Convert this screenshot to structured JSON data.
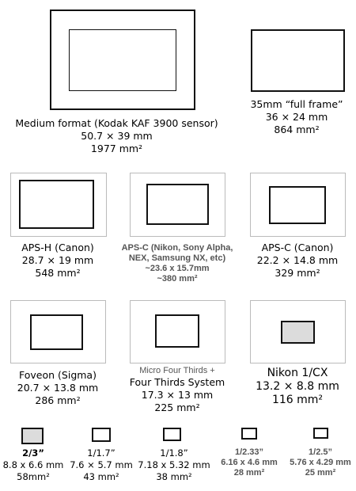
{
  "colors": {
    "sensor_fill_highlight": "#dcdcdc",
    "frame_border_light": "#bbbbbb",
    "frame_border_dark": "#111111"
  },
  "formats": [
    {
      "id": "medium",
      "lines": [
        "Medium format (Kodak KAF 3900 sensor)",
        "50.7 × 39 mm",
        "1977 mm²"
      ]
    },
    {
      "id": "full",
      "lines": [
        "35mm “full frame”",
        "36 × 24 mm",
        "864 mm²"
      ]
    },
    {
      "id": "apsh",
      "lines": [
        "APS-H (Canon)",
        "28.7 × 19 mm",
        "548 mm²"
      ]
    },
    {
      "id": "apsc",
      "lines": [
        "APS-C (Nikon, Sony Alpha,",
        "NEX, Samsung NX, etc)",
        "~23.6 x 15.7mm",
        "~380 mm²"
      ]
    },
    {
      "id": "apsccanon",
      "lines": [
        "APS-C (Canon)",
        "22.2 × 14.8 mm",
        "329 mm²"
      ]
    },
    {
      "id": "foveon",
      "lines": [
        "Foveon (Sigma)",
        "20.7 × 13.8 mm",
        "286 mm²"
      ]
    },
    {
      "id": "mft",
      "lines": [
        "Micro Four Thirds +",
        "Four Thirds System",
        "17.3 × 13 mm",
        "225 mm²"
      ]
    },
    {
      "id": "nikon1",
      "lines": [
        "Nikon 1/CX",
        "13.2 × 8.8 mm",
        "116 mm²"
      ]
    },
    {
      "id": "f23",
      "lines": [
        "2/3”",
        "8.8 x 6.6 mm",
        "58mm²"
      ]
    },
    {
      "id": "f117",
      "lines": [
        "1/1.7”",
        "7.6 × 5.7 mm",
        "43 mm²"
      ]
    },
    {
      "id": "f118",
      "lines": [
        "1/1.8”",
        "7.18 x 5.32 mm",
        "38 mm²"
      ]
    },
    {
      "id": "f1233",
      "lines": [
        "1/2.33”",
        "6.16 x 4.6 mm",
        "28 mm²"
      ]
    },
    {
      "id": "f125",
      "lines": [
        "1/2.5”",
        "5.76 x 4.29 mm",
        "25 mm²"
      ]
    }
  ]
}
